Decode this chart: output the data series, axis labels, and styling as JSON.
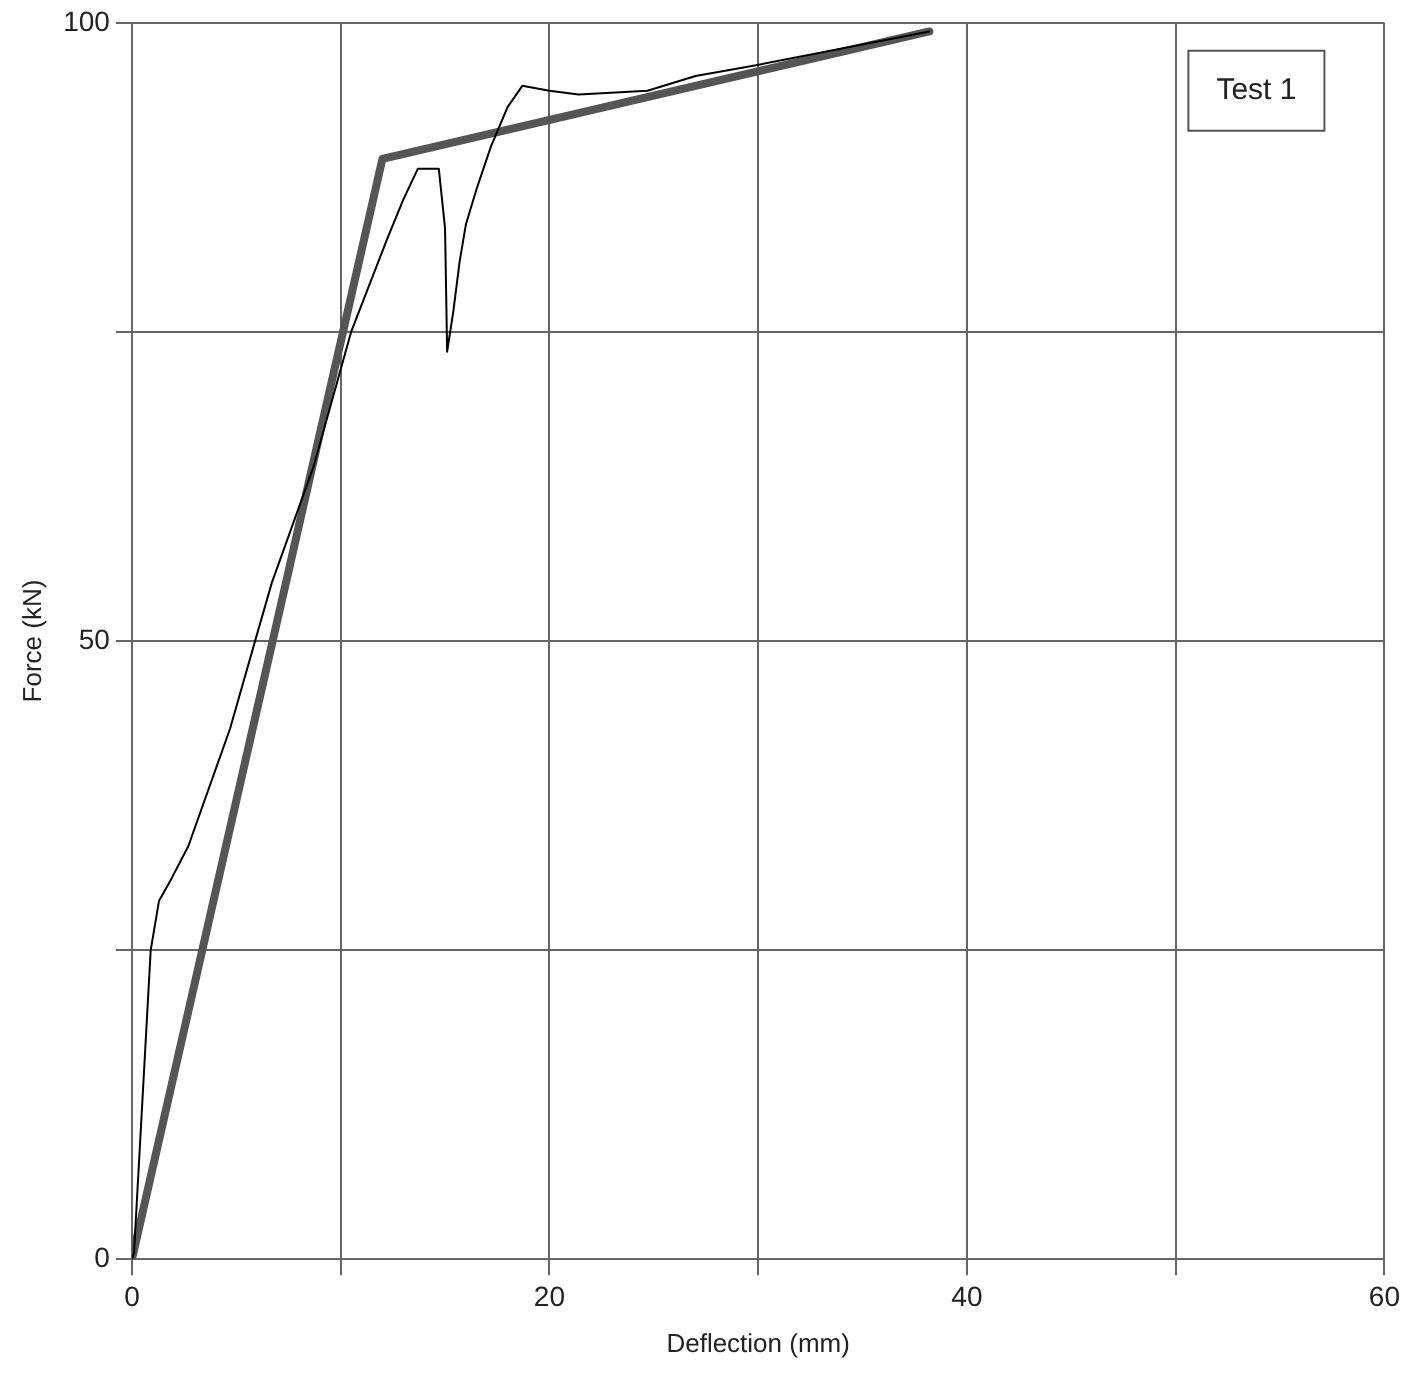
{
  "chart_data": {
    "type": "line",
    "xlabel": "Deflection (mm)",
    "ylabel": "Force (kN)",
    "annotations": [
      "Test 1"
    ],
    "xlim": [
      0,
      60
    ],
    "ylim": [
      0,
      100
    ],
    "xticks": [
      0,
      {
        "value": 10,
        "label": null
      },
      20,
      {
        "value": 30,
        "label": null
      },
      40,
      {
        "value": 50,
        "label": null
      },
      60
    ],
    "yticks": [
      0,
      {
        "value": 25,
        "label": null
      },
      50,
      {
        "value": 75,
        "label": null
      },
      100
    ],
    "grid": true,
    "legend": false,
    "marker": "none",
    "line_style": "solid",
    "series": [
      {
        "color": "#000000",
        "x": [
          0,
          0.1,
          0.9,
          1.3,
          1.9,
          2.7,
          4.7,
          5.9,
          6.7,
          8.7,
          10.5,
          12.2,
          13,
          13.7,
          14.7,
          15,
          15.1,
          15.4,
          15.7,
          16,
          16.5,
          17.2,
          18,
          18.7,
          20,
          21.4,
          24.7,
          27,
          29.7,
          38.2
        ],
        "values": [
          0,
          0.5,
          25,
          29,
          30.8,
          33.4,
          42.9,
          50,
          54.7,
          64.1,
          75,
          82.4,
          85.7,
          88.2,
          88.2,
          83.4,
          73.4,
          76.7,
          80.7,
          83.7,
          86.5,
          90,
          93.2,
          94.9,
          94.5,
          94.2,
          94.5,
          95.7,
          96.5,
          99.3
        ]
      },
      {
        "color": "#555555",
        "x": [
          0,
          12,
          38.2
        ],
        "values": [
          0,
          89,
          99.3
        ]
      }
    ]
  }
}
